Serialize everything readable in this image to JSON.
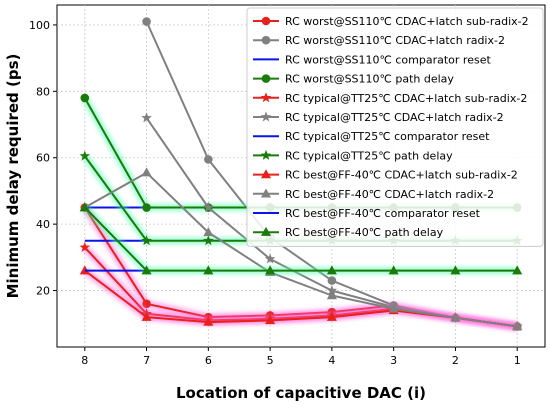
{
  "chart_data": {
    "type": "line",
    "xlabel": "Location of capacitive DAC (i)",
    "ylabel": "Minimum delay required (ps)",
    "x_ticks": [
      8,
      7,
      6,
      5,
      4,
      3,
      2,
      1
    ],
    "x_reversed": true,
    "xlim": [
      8.45,
      0.55
    ],
    "ylim": [
      3,
      106
    ],
    "y_ticks": [
      20,
      40,
      60,
      80,
      100
    ],
    "grid": true,
    "legend_position": "top-right",
    "series": [
      {
        "name": "RC worst@SS110℃ CDAC+latch sub-radix-2",
        "color": "#e8211d",
        "marker": "circle",
        "glow": "#ff66dd",
        "x": [
          8,
          7,
          6,
          5,
          4,
          3,
          2,
          1
        ],
        "y": [
          45,
          16,
          12,
          12.5,
          13.5,
          15.5,
          11.8,
          9.2
        ]
      },
      {
        "name": "RC worst@SS110℃ CDAC+latch radix-2",
        "color": "#808080",
        "marker": "circle",
        "x": [
          7,
          6,
          5,
          4,
          3,
          2,
          1
        ],
        "y": [
          101,
          59.5,
          36,
          23,
          15.5,
          11.8,
          9.2
        ]
      },
      {
        "name": "RC worst@SS110℃ comparator reset",
        "color": "#0a14e6",
        "marker": "none",
        "x": [
          8,
          1
        ],
        "y": [
          45,
          45
        ]
      },
      {
        "name": "RC worst@SS110℃ path delay",
        "color": "#1a7a0a",
        "marker": "circle",
        "glow": "#44ffaa",
        "x": [
          8,
          7,
          6,
          5,
          4,
          3,
          2,
          1
        ],
        "y": [
          78,
          45,
          45,
          45,
          45,
          45,
          45,
          45
        ]
      },
      {
        "name": "RC typical@TT25℃ CDAC+latch sub-radix-2",
        "color": "#e8211d",
        "marker": "star",
        "glow": "#ff66dd",
        "x": [
          8,
          7,
          6,
          5,
          4,
          3,
          2,
          1
        ],
        "y": [
          33,
          13,
          11,
          11.5,
          12.5,
          14.5,
          11.8,
          9.2
        ]
      },
      {
        "name": "RC typical@TT25℃ CDAC+latch radix-2",
        "color": "#808080",
        "marker": "star",
        "x": [
          7,
          6,
          5,
          4,
          3,
          2,
          1
        ],
        "y": [
          72,
          45,
          29.5,
          20,
          15,
          11.8,
          9.2
        ]
      },
      {
        "name": "RC typical@TT25℃ comparator reset",
        "color": "#0a14e6",
        "marker": "none",
        "x": [
          8,
          7
        ],
        "y": [
          35,
          35
        ]
      },
      {
        "name": "RC typical@TT25℃ path delay",
        "color": "#1a7a0a",
        "marker": "star",
        "glow": "#44ffaa",
        "x": [
          8,
          7,
          6,
          5,
          4,
          3,
          2,
          1
        ],
        "y": [
          60.5,
          35,
          35,
          35,
          35,
          35,
          35,
          35
        ]
      },
      {
        "name": "RC best@FF-40℃ CDAC+latch sub-radix-2",
        "color": "#e8211d",
        "marker": "triangle",
        "glow": "#ff66dd",
        "x": [
          8,
          7,
          6,
          5,
          4,
          3,
          2,
          1
        ],
        "y": [
          26,
          12,
          10.5,
          11,
          12,
          14,
          11.8,
          9.2
        ]
      },
      {
        "name": "RC best@FF-40℃ CDAC+latch radix-2",
        "color": "#808080",
        "marker": "triangle",
        "x": [
          8,
          7,
          6,
          5,
          4,
          3,
          2,
          1
        ],
        "y": [
          45,
          55.5,
          37.5,
          25.5,
          18.5,
          14.5,
          11.8,
          9.2
        ]
      },
      {
        "name": "RC best@FF-40℃ comparator reset",
        "color": "#0a14e6",
        "marker": "none",
        "x": [
          8,
          7
        ],
        "y": [
          26,
          26
        ]
      },
      {
        "name": "RC best@FF-40℃ path delay",
        "color": "#1a7a0a",
        "marker": "triangle",
        "glow": "#44ffaa",
        "x": [
          8,
          7,
          6,
          5,
          4,
          3,
          2,
          1
        ],
        "y": [
          45,
          26,
          26,
          26,
          26,
          26,
          26,
          26
        ]
      }
    ]
  }
}
